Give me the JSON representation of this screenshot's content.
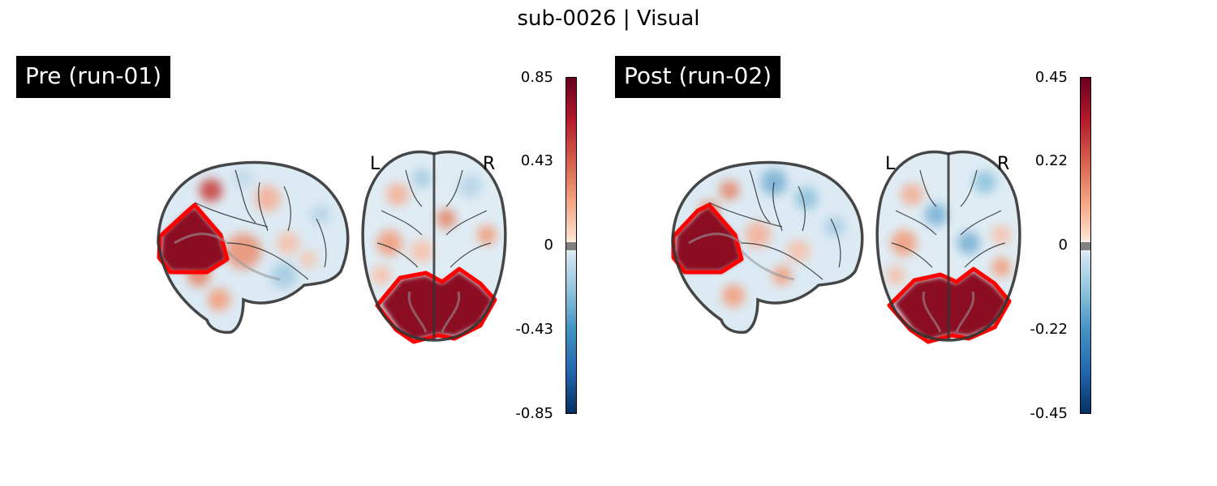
{
  "title": "sub-0026 | Visual",
  "panels": [
    {
      "label": "Pre (run-01)",
      "colorbar": {
        "ticks": [
          "0.85",
          "0.43",
          "0",
          "-0.43",
          "-0.85"
        ],
        "vmin": -0.85,
        "vmax": 0.85,
        "colormap": "RdBu_r"
      },
      "orientation": {
        "left": "L",
        "right": "R"
      },
      "roi_color": "#ff0000"
    },
    {
      "label": "Post (run-02)",
      "colorbar": {
        "ticks": [
          "0.45",
          "0.22",
          "0",
          "-0.22",
          "-0.45"
        ],
        "vmin": -0.45,
        "vmax": 0.45,
        "colormap": "RdBu_r"
      },
      "orientation": {
        "left": "L",
        "right": "R"
      },
      "roi_color": "#ff0000"
    }
  ]
}
